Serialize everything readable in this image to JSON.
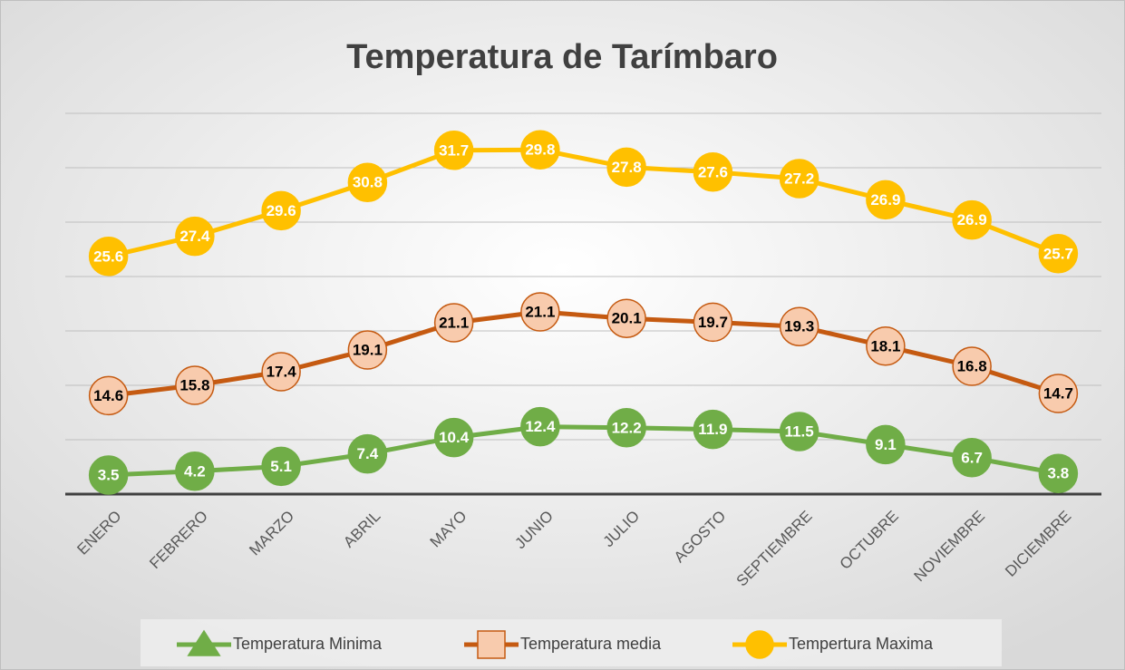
{
  "chart_data": {
    "type": "line",
    "stacked": true,
    "title": "Temperatura de Tarímbaro",
    "categories": [
      "ENERO",
      "FEBRERO",
      "MARZO",
      "ABRIL",
      "MAYO",
      "JUNIO",
      "JULIO",
      "AGOSTO",
      "SEPTIEMBRE",
      "OCTUBRE",
      "NOVIEMBRE",
      "DICIEMBRE"
    ],
    "series": [
      {
        "name": "Temperatura Minima",
        "color": "#70ad47",
        "marker": "triangle",
        "marker_fill": "#70ad47",
        "label_color": "#ffffff",
        "values": [
          3.5,
          4.2,
          5.1,
          7.4,
          10.4,
          12.4,
          12.2,
          11.9,
          11.5,
          9.1,
          6.7,
          3.8
        ]
      },
      {
        "name": "Temperatura media",
        "color": "#c55a11",
        "marker": "square",
        "marker_fill": "#f8cbad",
        "label_color": "#000000",
        "values": [
          14.6,
          15.8,
          17.4,
          19.1,
          21.1,
          21.1,
          20.1,
          19.7,
          19.3,
          18.1,
          16.8,
          14.7
        ]
      },
      {
        "name": "Tempertura Maxima",
        "color": "#ffc000",
        "marker": "circle",
        "marker_fill": "#ffc000",
        "label_color": "#ffffff",
        "values": [
          25.6,
          27.4,
          29.6,
          30.8,
          31.7,
          29.8,
          27.8,
          27.6,
          27.2,
          26.9,
          26.9,
          25.7
        ]
      }
    ],
    "ylim": [
      0,
      70
    ],
    "yticks": [
      0,
      10,
      20,
      30,
      40,
      50,
      60,
      70
    ],
    "grid": true,
    "legend": "bottom"
  }
}
